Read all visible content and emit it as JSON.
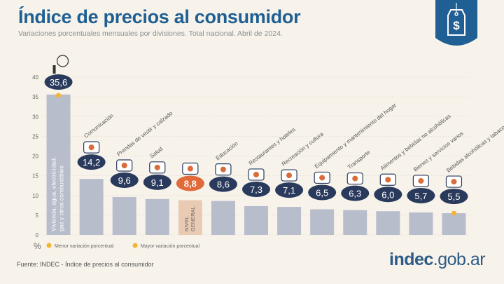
{
  "header": {
    "title": "Índice de precios al consumidor",
    "subtitle": "Variaciones porcentuales mensuales por divisiones. Total nacional. Abril de 2024."
  },
  "footer": {
    "source": "Fuente: INDEC - Índice de precios al consumidor",
    "logo_main": "indec",
    "logo_suffix": ".gob.ar"
  },
  "badge": {
    "symbol": "$",
    "icon": "price-tag-icon"
  },
  "colors": {
    "bar": "#b8bdcc",
    "bar_general": "#e9cbb4",
    "title": "#1f5f93",
    "bubble": "#2a3a5c",
    "bubble_general": "#e06a3a",
    "marker": "#f2b530",
    "background": "#f7f3ea"
  },
  "chart_data": {
    "type": "bar",
    "categories": [
      "Vivienda, agua, electricidad, gas y otros combustibles",
      "Comunicación",
      "Prendas de vestir y calzado",
      "Salud",
      "NIVEL GENERAL",
      "Educación",
      "Restaurantes y hoteles",
      "Recreación y cultura",
      "Equipamiento y mantenimiento del hogar",
      "Transporte",
      "Alimentos y bebidas no alcohólicas",
      "Bienes y servicios varios",
      "Bebidas alcohólicas y tabaco"
    ],
    "values": [
      35.6,
      14.2,
      9.6,
      9.1,
      8.8,
      8.6,
      7.3,
      7.1,
      6.5,
      6.3,
      6.0,
      5.7,
      5.5
    ],
    "value_labels": [
      "35,6",
      "14,2",
      "9,6",
      "9,1",
      "8,8",
      "8,6",
      "7,3",
      "7,1",
      "6,5",
      "6,3",
      "6,0",
      "5,7",
      "5,5"
    ],
    "highlight_index": 4,
    "max_index": 0,
    "min_index": 12,
    "y_ticks": [
      0,
      5,
      10,
      15,
      20,
      25,
      30,
      35,
      40
    ],
    "ylabel": "%",
    "ylim": [
      0,
      40
    ],
    "legend": {
      "min_label": "Menor variación porcentual",
      "max_label": "Mayor variación porcentual"
    },
    "icons": [
      "lightbulb-icon",
      "smartphone-icon",
      "tshirt-icon",
      "medical-cross-icon",
      "basket-icon",
      "book-icon",
      "plate-cutlery-icon",
      "umbrella-icon",
      "sofa-icon",
      "bus-icon",
      "food-icon",
      "razor-comb-icon",
      "bottle-glass-icon"
    ]
  }
}
